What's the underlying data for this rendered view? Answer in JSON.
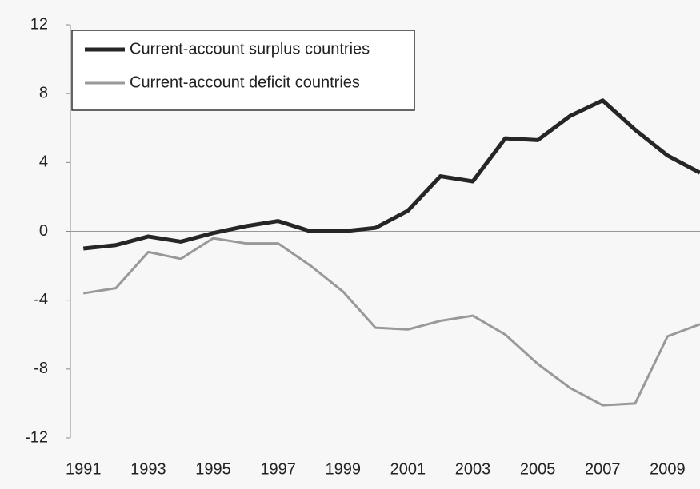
{
  "chart_data": {
    "type": "line",
    "x": [
      1991,
      1992,
      1993,
      1994,
      1995,
      1996,
      1997,
      1998,
      1999,
      2000,
      2001,
      2002,
      2003,
      2004,
      2005,
      2006,
      2007,
      2008,
      2009,
      2010
    ],
    "series": [
      {
        "name": "Current-account surplus countries",
        "color": "#262626",
        "values": [
          -1.0,
          -0.8,
          -0.3,
          -0.6,
          -0.1,
          0.3,
          0.6,
          0.0,
          0.0,
          0.2,
          1.2,
          3.2,
          2.9,
          5.4,
          5.3,
          6.7,
          7.6,
          5.9,
          4.4,
          3.4
        ]
      },
      {
        "name": "Current-account deficit countries",
        "color": "#999999",
        "values": [
          -3.6,
          -3.3,
          -1.2,
          -1.6,
          -0.4,
          -0.7,
          -0.7,
          -2.0,
          -3.5,
          -5.6,
          -5.7,
          -5.2,
          -4.9,
          -6.0,
          -7.7,
          -9.1,
          -10.1,
          -10.0,
          -6.1,
          -5.4
        ]
      }
    ],
    "xlim": [
      1990.6,
      2010
    ],
    "xticks": [
      1991,
      1993,
      1995,
      1997,
      1999,
      2001,
      2003,
      2005,
      2007,
      2009
    ],
    "ylim": [
      -12,
      12
    ],
    "yticks": [
      -12,
      -8,
      -4,
      0,
      4,
      8,
      12
    ],
    "legend": "upper left",
    "grid": false
  }
}
